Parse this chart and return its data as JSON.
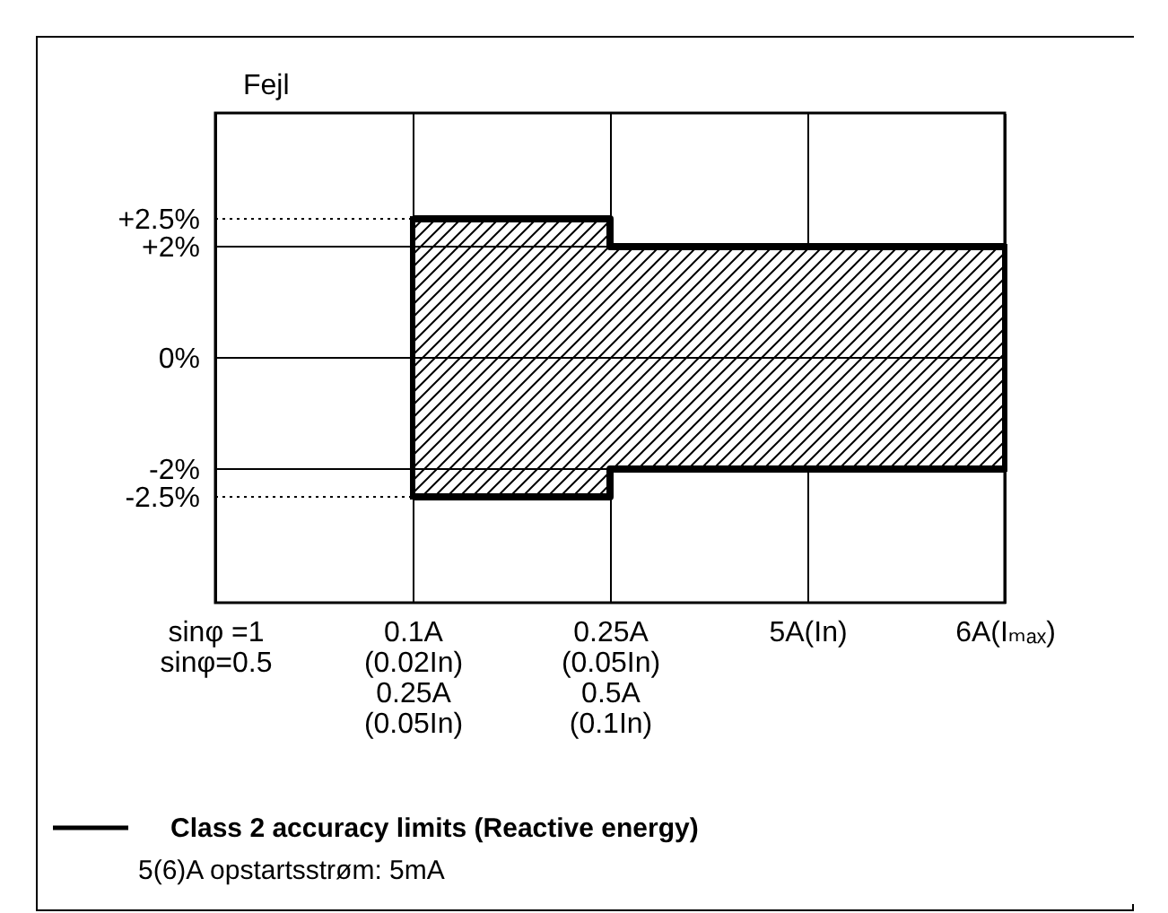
{
  "chart_data": {
    "type": "step",
    "ylabel": "Fejl",
    "annotations": [
      "5(6)A opstartsstrøm: 5mA"
    ],
    "categories": [
      "sinφ =1\n\nsinφ=0.5",
      "0.1A\n(0.02In)\n0.25A\n(0.05In)",
      "0.25A\n(0.05In)\n0.5A\n(0.1In)",
      "5A(In)",
      "6A(Iₘₐₓ)"
    ],
    "ylim": [
      -4.4,
      4.4
    ],
    "yticks": [
      {
        "value": 2.5,
        "label": "+2.5%"
      },
      {
        "value": 2,
        "label": "+2%"
      },
      {
        "value": 0,
        "label": "0%"
      },
      {
        "value": -2,
        "label": "-2%"
      },
      {
        "value": -2.5,
        "label": "-2.5%"
      }
    ],
    "series": [
      {
        "name": "Class 2 accuracy limits (Reactive energy)",
        "color": "#000000",
        "values": [
          null,
          2.5,
          2,
          2,
          2
        ],
        "lower": [
          null,
          -2.5,
          -2,
          -2,
          -2
        ],
        "upper": [
          null,
          2.5,
          2,
          2,
          2
        ]
      },
      {
        "color": "#000000",
        "values": [
          null,
          -2.5,
          -2,
          -2,
          -2
        ]
      }
    ],
    "ref_lines": [
      {
        "axis": "y",
        "value": 2.5,
        "line_style": "dotted"
      },
      {
        "axis": "y",
        "value": -2.5,
        "line_style": "dotted"
      }
    ],
    "grid": true,
    "legend": "bottom left"
  }
}
